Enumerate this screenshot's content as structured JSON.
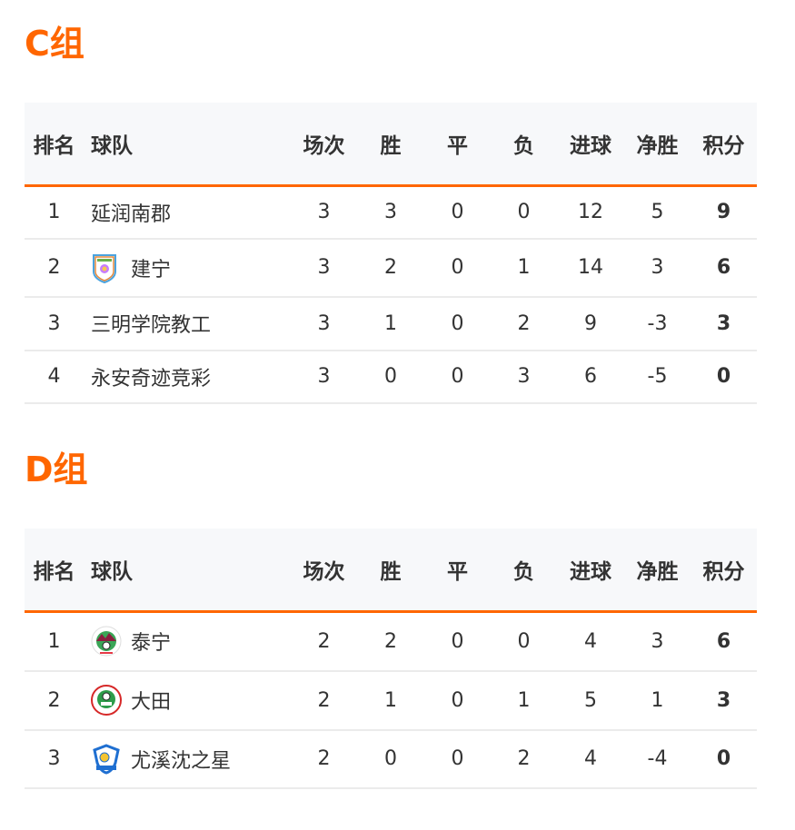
{
  "headers": {
    "rank": "排名",
    "team": "球队",
    "played": "场次",
    "win": "胜",
    "draw": "平",
    "loss": "负",
    "goals": "进球",
    "gd": "净胜",
    "points": "积分"
  },
  "accent": "#ff6600",
  "groups": [
    {
      "title": "C组",
      "rows": [
        {
          "rank": "1",
          "team": "延润南郡",
          "logo": null,
          "played": "3",
          "win": "3",
          "draw": "0",
          "loss": "0",
          "goals": "12",
          "gd": "5",
          "points": "9"
        },
        {
          "rank": "2",
          "team": "建宁",
          "logo": "shield-badge",
          "played": "3",
          "win": "2",
          "draw": "0",
          "loss": "1",
          "goals": "14",
          "gd": "3",
          "points": "6"
        },
        {
          "rank": "3",
          "team": "三明学院教工",
          "logo": null,
          "played": "3",
          "win": "1",
          "draw": "0",
          "loss": "2",
          "goals": "9",
          "gd": "-3",
          "points": "3"
        },
        {
          "rank": "4",
          "team": "永安奇迹竞彩",
          "logo": null,
          "played": "3",
          "win": "0",
          "draw": "0",
          "loss": "3",
          "goals": "6",
          "gd": "-5",
          "points": "0"
        }
      ]
    },
    {
      "title": "D组",
      "rows": [
        {
          "rank": "1",
          "team": "泰宁",
          "logo": "green-mountain-badge",
          "played": "2",
          "win": "2",
          "draw": "0",
          "loss": "0",
          "goals": "4",
          "gd": "3",
          "points": "6"
        },
        {
          "rank": "2",
          "team": "大田",
          "logo": "red-ring-badge",
          "played": "2",
          "win": "1",
          "draw": "0",
          "loss": "1",
          "goals": "5",
          "gd": "1",
          "points": "3"
        },
        {
          "rank": "3",
          "team": "尤溪沈之星",
          "logo": "blue-shield-badge",
          "played": "2",
          "win": "0",
          "draw": "0",
          "loss": "2",
          "goals": "4",
          "gd": "-4",
          "points": "0"
        }
      ]
    }
  ]
}
